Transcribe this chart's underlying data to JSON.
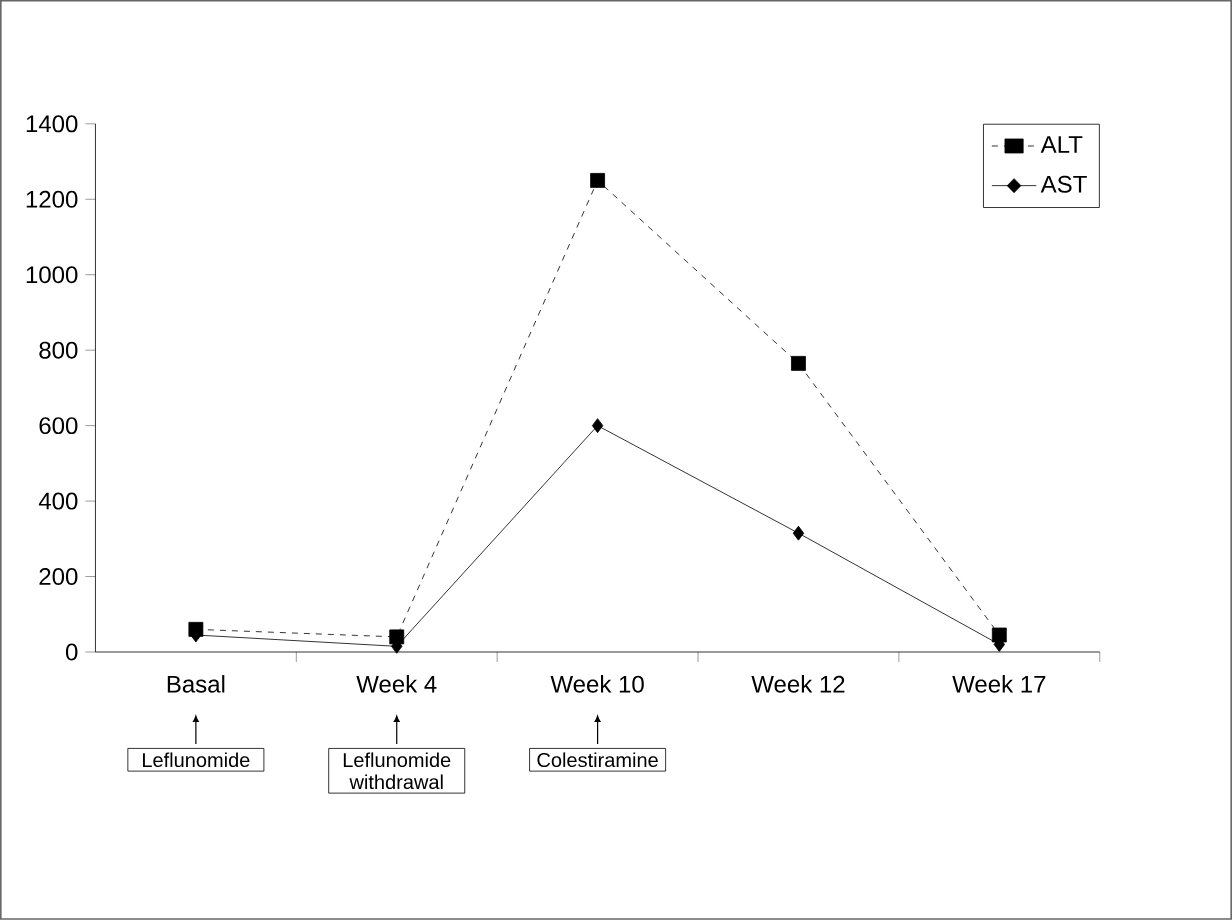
{
  "chart_data": {
    "type": "line",
    "categories": [
      "Basal",
      "Week 4",
      "Week 10",
      "Week 12",
      "Week 17"
    ],
    "series": [
      {
        "name": "ALT",
        "color": "#000000",
        "values": [
          60,
          40,
          1250,
          765,
          45
        ],
        "marker": "square",
        "line_style": "dashed"
      },
      {
        "name": "AST",
        "color": "#000000",
        "values": [
          45,
          15,
          600,
          315,
          20
        ],
        "marker": "diamond",
        "line_style": "solid"
      }
    ],
    "ylim": [
      0,
      1400
    ],
    "yticks": [
      0,
      200,
      400,
      600,
      800,
      1000,
      1200,
      1400
    ],
    "grid": false,
    "legend": "top right",
    "annotations": [
      "Leflunomide",
      "Leflunomide withdrawal",
      "Colestiramine"
    ]
  }
}
